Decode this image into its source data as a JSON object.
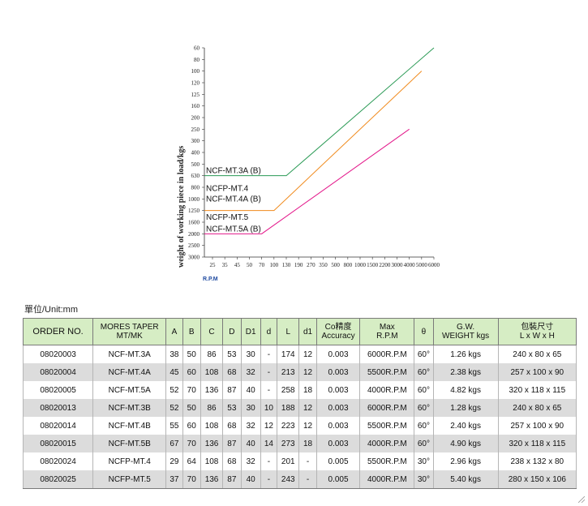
{
  "chart_data": {
    "type": "line",
    "ylabel": "weight of working piece in load/kgs",
    "xlabel": "R.P.M",
    "y_ticks": [
      "60",
      "80",
      "100",
      "120",
      "125",
      "160",
      "200",
      "250",
      "300",
      "400",
      "500",
      "630",
      "800",
      "1000",
      "1250",
      "1600",
      "2000",
      "2500",
      "3000"
    ],
    "x_ticks": [
      "25",
      "35",
      "45",
      "50",
      "70",
      "100",
      "130",
      "190",
      "270",
      "350",
      "500",
      "800",
      "1000",
      "1500",
      "2200",
      "3000",
      "4000",
      "5000",
      "6000"
    ],
    "y_scale": "log",
    "series": [
      {
        "name": "NCF-MT.3A (B)",
        "color": "#2a9a55",
        "points": [
          {
            "rpm": 25,
            "load": 630
          },
          {
            "rpm": 130,
            "load": 630
          },
          {
            "rpm": 6000,
            "load": 60
          }
        ]
      },
      {
        "name": "NCFP-MT.4 / NCF-MT.4A (B)",
        "color": "#f08a1c",
        "points": [
          {
            "rpm": 25,
            "load": 1250
          },
          {
            "rpm": 100,
            "load": 1250
          },
          {
            "rpm": 5000,
            "load": 100
          }
        ]
      },
      {
        "name": "NCFP-MT.5 / NCF-MT.5A (B)",
        "color": "#e3178a",
        "points": [
          {
            "rpm": 25,
            "load": 2000
          },
          {
            "rpm": 70,
            "load": 2000
          },
          {
            "rpm": 4000,
            "load": 250
          }
        ]
      }
    ],
    "labels": [
      {
        "text": "NCF-MT.3A (B)",
        "rpm": 25,
        "load": 630
      },
      {
        "text": "NCFP-MT.4",
        "rpm": 25,
        "load": 900
      },
      {
        "text": "NCF-MT.4A (B)",
        "rpm": 25,
        "load": 1100
      },
      {
        "text": "NCFP-MT.5",
        "rpm": 25,
        "load": 1600
      },
      {
        "text": "NCF-MT.5A (B)",
        "rpm": 25,
        "load": 2000
      }
    ]
  },
  "unit_label": "單位/Unit:mm",
  "table": {
    "headers": [
      "ORDER NO.",
      "MORES TAPER\nMT/MK",
      "A",
      "B",
      "C",
      "D",
      "D1",
      "d",
      "L",
      "d1",
      "Co精度\nAccuracy",
      "Max\nR.P.M",
      "θ",
      "G.W.\nWEIGHT kgs",
      "包裝尺寸\nL x W x H"
    ],
    "rows": [
      [
        "08020003",
        "NCF-MT.3A",
        "38",
        "50",
        "86",
        "53",
        "30",
        "-",
        "174",
        "12",
        "0.003",
        "6000R.P.M",
        "60°",
        "1.26 kgs",
        "240 x 80 x 65"
      ],
      [
        "08020004",
        "NCF-MT.4A",
        "45",
        "60",
        "108",
        "68",
        "32",
        "-",
        "213",
        "12",
        "0.003",
        "5500R.P.M",
        "60°",
        "2.38 kgs",
        "257 x 100 x 90"
      ],
      [
        "08020005",
        "NCF-MT.5A",
        "52",
        "70",
        "136",
        "87",
        "40",
        "-",
        "258",
        "18",
        "0.003",
        "4000R.P.M",
        "60°",
        "4.82 kgs",
        "320 x 118 x 115"
      ],
      [
        "08020013",
        "NCF-MT.3B",
        "52",
        "50",
        "86",
        "53",
        "30",
        "10",
        "188",
        "12",
        "0.003",
        "6000R.P.M",
        "60°",
        "1.28 kgs",
        "240 x 80 x 65"
      ],
      [
        "08020014",
        "NCF-MT.4B",
        "55",
        "60",
        "108",
        "68",
        "32",
        "12",
        "223",
        "12",
        "0.003",
        "5500R.P.M",
        "60°",
        "2.40 kgs",
        "257 x 100 x 90"
      ],
      [
        "08020015",
        "NCF-MT.5B",
        "67",
        "70",
        "136",
        "87",
        "40",
        "14",
        "273",
        "18",
        "0.003",
        "4000R.P.M",
        "60°",
        "4.90 kgs",
        "320 x 118 x 115"
      ],
      [
        "08020024",
        "NCFP-MT.4",
        "29",
        "64",
        "108",
        "68",
        "32",
        "-",
        "201",
        "-",
        "0.005",
        "5500R.P.M",
        "30°",
        "2.96 kgs",
        "238 x 132 x 80"
      ],
      [
        "08020025",
        "NCFP-MT.5",
        "37",
        "70",
        "136",
        "87",
        "40",
        "-",
        "243",
        "-",
        "0.005",
        "4000R.P.M",
        "30°",
        "5.40 kgs",
        "280 x 150 x 106"
      ]
    ]
  }
}
